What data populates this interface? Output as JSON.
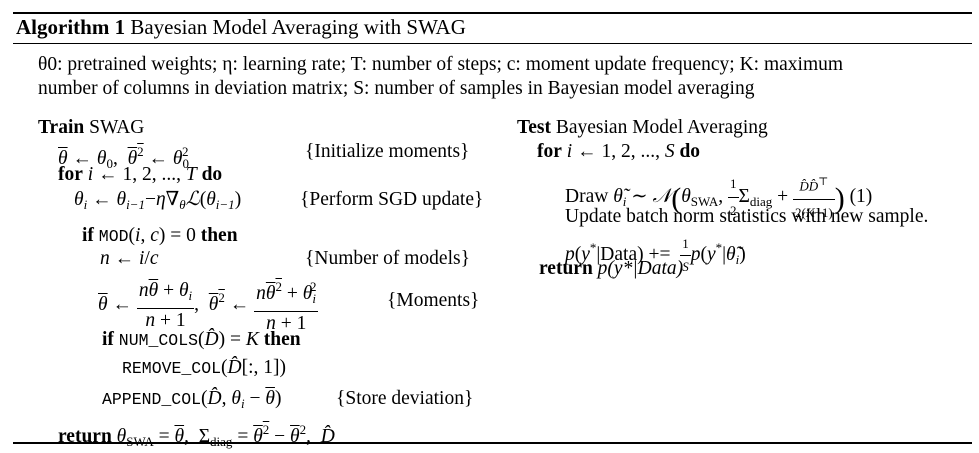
{
  "algorithm": {
    "label": "Algorithm 1",
    "title": "Bayesian Model Averaging with SWAG"
  },
  "description": {
    "line1": "θ0: pretrained weights; η: learning rate; T: number of steps; c: moment update frequency; K: maximum",
    "line2": "number of columns in deviation matrix; S: number of samples in Bayesian model averaging"
  },
  "train": {
    "keyword": "Train",
    "name": "SWAG",
    "init_comment": "{Initialize moments}",
    "sgd_comment": "{Perform SGD update}",
    "models_comment": "{Number of models}",
    "moments_comment": "{Moments}",
    "store_comment": "{Store deviation}",
    "func_mod": "MOD",
    "func_num_cols": "NUM_COLS",
    "func_remove_col": "REMOVE_COL",
    "func_append_col": "APPEND_COL"
  },
  "test": {
    "keyword": "Test",
    "name": "Bayesian Model Averaging",
    "draw_label": "Draw",
    "eq_number": "(1)",
    "update_bn": "Update batch norm statistics with new sample.",
    "return_text": "p(y*|Data)"
  },
  "keywords": {
    "for": "for",
    "do": "do",
    "if": "if",
    "then": "then",
    "return": "return"
  }
}
